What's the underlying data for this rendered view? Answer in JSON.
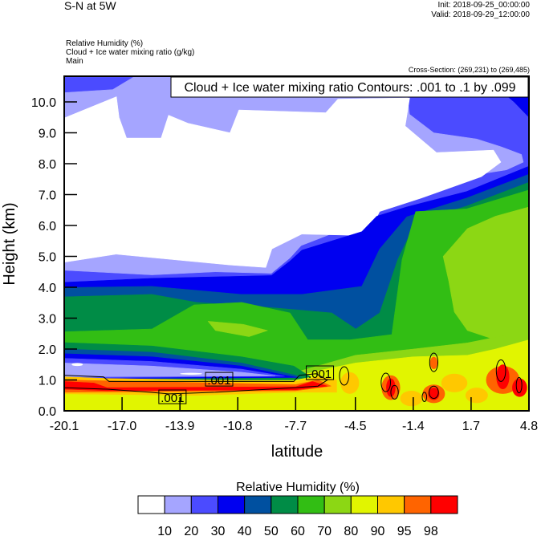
{
  "header": {
    "title": "S-N at 5W",
    "init": "Init: 2018-09-25_00:00:00",
    "valid": "Valid: 2018-09-29_12:00:00",
    "fields": [
      "Relative Humidity   (%)",
      "Cloud + Ice water mixing ratio   (g/kg)",
      "Main"
    ],
    "cross_section": "Cross-Section: (269,231) to (269,485)"
  },
  "chart_data": {
    "type": "contour",
    "annotation": "Cloud + Ice water mixing ratio Contours: .001 to .1 by .099",
    "xlabel": "latitude",
    "ylabel": "Height (km)",
    "xlim": [
      -20.1,
      4.8
    ],
    "ylim": [
      0,
      10.8
    ],
    "x_ticks": [
      -20.1,
      -17.0,
      -13.9,
      -10.8,
      -7.7,
      -4.5,
      -1.4,
      1.7,
      4.8
    ],
    "x_tick_labels": [
      "-20.1",
      "-17.0",
      "-13.9",
      "-10.8",
      "-7.7",
      "-4.5",
      "-1.4",
      "1.7",
      "4.8"
    ],
    "y_ticks": [
      0,
      1,
      2,
      3,
      4,
      5,
      6,
      7,
      8,
      9,
      10
    ],
    "y_tick_labels": [
      "0.0",
      "1.0",
      "2.0",
      "3.0",
      "4.0",
      "5.0",
      "6.0",
      "7.0",
      "8.0",
      "9.0",
      "10.0"
    ],
    "colorbar": {
      "title": "Relative Humidity  (%)",
      "levels": [
        "10",
        "20",
        "30",
        "40",
        "50",
        "60",
        "70",
        "80",
        "90",
        "95",
        "98"
      ],
      "colors": [
        "#ffffff",
        "#a5a5ff",
        "#4b4bff",
        "#0000f0",
        "#0050a0",
        "#008c46",
        "#32be14",
        "#8cd714",
        "#e1f500",
        "#ffc800",
        "#ff6400",
        "#ff0000"
      ]
    },
    "rh_regions": [
      {
        "level": 2,
        "points": [
          [
            -20.1,
            0
          ],
          [
            4.8,
            0
          ],
          [
            4.8,
            10.8
          ],
          [
            -20.1,
            10.8
          ]
        ]
      },
      {
        "level": 1,
        "points": [
          [
            -20.1,
            10.3
          ],
          [
            -17.5,
            10.4
          ],
          [
            -16.4,
            10.8
          ],
          [
            -10,
            10.8
          ],
          [
            -8.5,
            10.6
          ],
          [
            -1.8,
            10.6
          ],
          [
            -1.6,
            9.6
          ],
          [
            -0.3,
            9.0
          ],
          [
            2.0,
            8.8
          ],
          [
            3.3,
            8.55
          ],
          [
            4.4,
            8.3
          ],
          [
            4.5,
            8.05
          ],
          [
            3.6,
            7.8
          ],
          [
            1.5,
            7.6
          ],
          [
            -1.8,
            7.1
          ],
          [
            -3.4,
            6.7
          ],
          [
            -4.2,
            6.1
          ],
          [
            -7.4,
            5.35
          ],
          [
            -8.0,
            4.95
          ],
          [
            -9.0,
            4.45
          ],
          [
            -12,
            4.5
          ],
          [
            -15.4,
            4.4
          ],
          [
            -20.1,
            4.55
          ]
        ]
      },
      {
        "level": 3,
        "points": [
          [
            3.0,
            10.8
          ],
          [
            4.8,
            10.8
          ],
          [
            4.8,
            9.5
          ],
          [
            4.0,
            10.0
          ],
          [
            3.2,
            10.4
          ]
        ]
      },
      {
        "level": 0,
        "points": [
          [
            -20.1,
            9.48
          ],
          [
            -17.3,
            10.17
          ],
          [
            -17.16,
            9.5
          ],
          [
            -16.76,
            8.83
          ],
          [
            -14.91,
            8.83
          ],
          [
            -14.51,
            9.57
          ],
          [
            -13.47,
            9.31
          ],
          [
            -11.22,
            9.0
          ],
          [
            -10.74,
            9.74
          ],
          [
            -6.09,
            9.65
          ],
          [
            -5.44,
            10.09
          ],
          [
            -1.59,
            10.13
          ],
          [
            -1.83,
            9.22
          ],
          [
            -0.15,
            8.36
          ],
          [
            2.9,
            8.44
          ],
          [
            3.3,
            8.05
          ],
          [
            2.26,
            7.58
          ],
          [
            -0.95,
            6.89
          ],
          [
            -3.2,
            6.45
          ],
          [
            -3.84,
            5.67
          ],
          [
            -7.37,
            5.72
          ],
          [
            -8.97,
            5.24
          ],
          [
            -9.3,
            4.64
          ],
          [
            -11.22,
            4.72
          ],
          [
            -17.32,
            5.07
          ],
          [
            -20.1,
            4.81
          ]
        ]
      },
      {
        "level": 3,
        "points": [
          [
            -20.1,
            0
          ],
          [
            -20.1,
            4.16
          ],
          [
            -15.4,
            4.29
          ],
          [
            -9.0,
            4.38
          ],
          [
            -8.0,
            4.85
          ],
          [
            -7.37,
            5.2
          ],
          [
            -4.16,
            5.8
          ],
          [
            -3.36,
            6.3
          ],
          [
            -1.75,
            6.6
          ],
          [
            1.46,
            7.1
          ],
          [
            4.8,
            7.92
          ],
          [
            4.8,
            0
          ]
        ]
      },
      {
        "level": 4,
        "points": [
          [
            -20.1,
            0
          ],
          [
            -20.1,
            3.99
          ],
          [
            -15.4,
            4.03
          ],
          [
            -10.6,
            3.77
          ],
          [
            -7.37,
            3.77
          ],
          [
            -4.16,
            4.03
          ],
          [
            -3.2,
            5.24
          ],
          [
            -1.75,
            6.28
          ],
          [
            1.46,
            6.89
          ],
          [
            4.8,
            7.66
          ],
          [
            4.8,
            0
          ]
        ]
      },
      {
        "level": 5,
        "points": [
          [
            -20.1,
            0
          ],
          [
            -20.1,
            3.69
          ],
          [
            -15.4,
            3.77
          ],
          [
            -13.0,
            3.51
          ],
          [
            -8.97,
            3.34
          ],
          [
            -5.76,
            3.17
          ],
          [
            -4.48,
            2.65
          ],
          [
            -3.2,
            3.17
          ],
          [
            -2.23,
            4.9
          ],
          [
            -1.27,
            6.1
          ],
          [
            1.46,
            6.63
          ],
          [
            4.8,
            7.4
          ],
          [
            4.8,
            0
          ]
        ]
      },
      {
        "level": 6,
        "points": [
          [
            -20.1,
            0
          ],
          [
            -20.1,
            2.56
          ],
          [
            -15.4,
            2.65
          ],
          [
            -13.15,
            3.43
          ],
          [
            -10.58,
            3.51
          ],
          [
            -8.0,
            3.17
          ],
          [
            -7.05,
            2.3
          ],
          [
            -4.8,
            2.3
          ],
          [
            -2.55,
            2.47
          ],
          [
            -2.0,
            4.9
          ],
          [
            -1.27,
            6.45
          ],
          [
            1.46,
            6.54
          ],
          [
            4.8,
            7.15
          ],
          [
            4.8,
            0
          ]
        ]
      },
      {
        "level": 7,
        "points": [
          [
            0.2,
            5.0
          ],
          [
            1.5,
            5.9
          ],
          [
            3.0,
            6.3
          ],
          [
            4.8,
            6.6
          ],
          [
            4.8,
            2.3
          ],
          [
            3.0,
            2.3
          ],
          [
            1.5,
            2.6
          ],
          [
            0.8,
            3.2
          ],
          [
            0.5,
            4.2
          ]
        ]
      },
      {
        "level": 7,
        "points": [
          [
            -12.4,
            2.9
          ],
          [
            -10.5,
            2.8
          ],
          [
            -9.2,
            2.6
          ],
          [
            -10.2,
            2.4
          ],
          [
            -12,
            2.6
          ]
        ]
      },
      {
        "level": 7,
        "points": [
          [
            -20.1,
            0
          ],
          [
            4.8,
            0
          ],
          [
            4.8,
            2.6
          ],
          [
            1.5,
            2.2
          ],
          [
            -1.4,
            2.0
          ],
          [
            -4.5,
            1.8
          ],
          [
            -7.7,
            1.25
          ],
          [
            -20.1,
            1.3
          ]
        ]
      },
      {
        "level": 8,
        "points": [
          [
            -20.1,
            0
          ],
          [
            4.8,
            0
          ],
          [
            4.8,
            2.3
          ],
          [
            3.0,
            2.0
          ],
          [
            1.5,
            1.8
          ],
          [
            -1.4,
            1.75
          ],
          [
            -4.5,
            1.55
          ],
          [
            -6.5,
            1.3
          ],
          [
            -7.7,
            1.1
          ],
          [
            -20.1,
            1.2
          ]
        ]
      },
      {
        "level": 5,
        "points": [
          [
            -20.1,
            2.21
          ],
          [
            -15.4,
            2.1
          ],
          [
            -10.6,
            1.75
          ],
          [
            -7.8,
            1.45
          ],
          [
            -6.9,
            1.1
          ],
          [
            -7.8,
            1.0
          ],
          [
            -20.1,
            1.0
          ]
        ]
      },
      {
        "level": 4,
        "points": [
          [
            -20.1,
            2.0
          ],
          [
            -15.4,
            1.9
          ],
          [
            -10.6,
            1.55
          ],
          [
            -7.7,
            1.15
          ],
          [
            -7.4,
            1.08
          ],
          [
            -20.1,
            1.02
          ]
        ]
      },
      {
        "level": 3,
        "points": [
          [
            -20.1,
            1.85
          ],
          [
            -15.4,
            1.75
          ],
          [
            -10.6,
            1.45
          ],
          [
            -8.0,
            1.12
          ],
          [
            -7.6,
            1.08
          ],
          [
            -20.1,
            1.04
          ]
        ]
      },
      {
        "level": 2,
        "points": [
          [
            -20.1,
            1.7
          ],
          [
            -15.4,
            1.6
          ],
          [
            -10.6,
            1.35
          ],
          [
            -8.3,
            1.12
          ],
          [
            -20.1,
            1.06
          ]
        ]
      },
      {
        "level": 1,
        "points": [
          [
            -20.1,
            1.55
          ],
          [
            -15.4,
            1.45
          ],
          [
            -10.6,
            1.25
          ],
          [
            -8.8,
            1.13
          ],
          [
            -20.1,
            1.1
          ]
        ]
      },
      {
        "level": 9,
        "points": [
          [
            -20.1,
            1.1
          ],
          [
            -17.8,
            1.05
          ],
          [
            -7.7,
            0.95
          ],
          [
            -6.5,
            1.1
          ],
          [
            -5.5,
            1.0
          ],
          [
            -5.5,
            0.6
          ],
          [
            -7.7,
            0.6
          ],
          [
            -13,
            0.5
          ],
          [
            -20.1,
            0.55
          ]
        ]
      },
      {
        "level": 10,
        "points": [
          [
            -20.1,
            1.0
          ],
          [
            -7.7,
            0.85
          ],
          [
            -6.5,
            1.0
          ],
          [
            -5.8,
            0.8
          ],
          [
            -7.7,
            0.65
          ],
          [
            -20.1,
            0.6
          ]
        ]
      },
      {
        "level": 11,
        "points": [
          [
            -20.1,
            0.95
          ],
          [
            -18.5,
            0.9
          ],
          [
            -17.8,
            0.75
          ],
          [
            -7.7,
            0.78
          ],
          [
            -6.8,
            0.95
          ],
          [
            -6.0,
            0.8
          ],
          [
            -7.7,
            0.68
          ],
          [
            -17.8,
            0.65
          ],
          [
            -20.1,
            0.7
          ]
        ]
      }
    ],
    "rh_blobs": [
      {
        "lat": -19.4,
        "h": 1.5,
        "rlat": 0.3,
        "rh": 0.05,
        "level": 0
      },
      {
        "lat": -13.3,
        "h": 1.2,
        "rlat": 0.6,
        "rh": 0.03,
        "level": 0
      },
      {
        "lat": -4.8,
        "h": 0.9,
        "rlat": 0.5,
        "rh": 0.35,
        "level": 9
      },
      {
        "lat": -2.6,
        "h": 0.75,
        "rlat": 0.5,
        "rh": 0.4,
        "level": 10
      },
      {
        "lat": -2.6,
        "h": 0.75,
        "rlat": 0.25,
        "rh": 0.3,
        "level": 11
      },
      {
        "lat": -0.3,
        "h": 0.55,
        "rlat": 0.6,
        "rh": 0.3,
        "level": 10
      },
      {
        "lat": -0.3,
        "h": 0.55,
        "rlat": 0.3,
        "rh": 0.2,
        "level": 11
      },
      {
        "lat": -0.3,
        "h": 1.55,
        "rlat": 0.2,
        "rh": 0.2,
        "level": 10
      },
      {
        "lat": 0.8,
        "h": 0.9,
        "rlat": 0.7,
        "rh": 0.3,
        "level": 9
      },
      {
        "lat": -1.5,
        "h": 0.4,
        "rlat": 0.6,
        "rh": 0.25,
        "level": 9
      },
      {
        "lat": 3.4,
        "h": 1.0,
        "rlat": 0.9,
        "rh": 0.45,
        "level": 10
      },
      {
        "lat": 3.4,
        "h": 1.1,
        "rlat": 0.35,
        "rh": 0.4,
        "level": 11
      },
      {
        "lat": 4.3,
        "h": 0.75,
        "rlat": 0.4,
        "rh": 0.3,
        "level": 11
      },
      {
        "lat": 2.0,
        "h": 0.5,
        "rlat": 0.6,
        "rh": 0.25,
        "level": 9
      }
    ],
    "cloud_contours": [
      {
        "value": ".001",
        "points": [
          [
            -20.1,
            1.15
          ],
          [
            -18.0,
            1.1
          ],
          [
            -17.7,
            0.95
          ],
          [
            -15.5,
            0.95
          ],
          [
            -7.8,
            0.95
          ],
          [
            -7.5,
            1.15
          ],
          [
            -6.6,
            1.2
          ],
          [
            -6.0,
            1.0
          ],
          [
            -6.5,
            0.8
          ],
          [
            -7.7,
            0.75
          ],
          [
            -12,
            0.6
          ],
          [
            -14.5,
            0.55
          ],
          [
            -15.5,
            0.6
          ],
          [
            -17.8,
            0.7
          ],
          [
            -20.1,
            0.75
          ]
        ]
      }
    ],
    "cloud_contour_ellipses": [
      {
        "lat": -5.1,
        "h": 1.13,
        "rlat": 0.25,
        "rh": 0.3
      },
      {
        "lat": -2.87,
        "h": 0.92,
        "rlat": 0.25,
        "rh": 0.3
      },
      {
        "lat": -2.4,
        "h": 0.6,
        "rlat": 0.2,
        "rh": 0.22
      },
      {
        "lat": -0.3,
        "h": 1.57,
        "rlat": 0.22,
        "rh": 0.3
      },
      {
        "lat": -0.3,
        "h": 0.6,
        "rlat": 0.25,
        "rh": 0.2
      },
      {
        "lat": -0.8,
        "h": 0.45,
        "rlat": 0.12,
        "rh": 0.15
      },
      {
        "lat": 3.3,
        "h": 1.3,
        "rlat": 0.25,
        "rh": 0.35
      },
      {
        "lat": 4.27,
        "h": 0.83,
        "rlat": 0.15,
        "rh": 0.25
      }
    ],
    "contour_labels": [
      {
        "text": ".001",
        "lat": -11.8,
        "h": 1.01
      },
      {
        "text": ".001",
        "lat": -14.3,
        "h": 0.44
      },
      {
        "text": ".001",
        "lat": -6.4,
        "h": 1.22
      }
    ]
  }
}
